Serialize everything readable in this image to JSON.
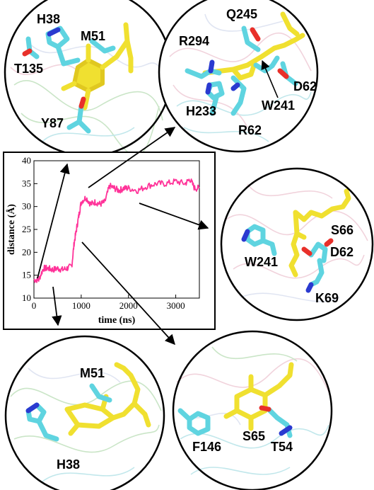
{
  "chart_data": {
    "type": "line",
    "title": "",
    "xlabel": "time (ns)",
    "ylabel": "distance (Å)",
    "xlim": [
      0,
      3500
    ],
    "ylim": [
      10,
      40
    ],
    "xticks": [
      0,
      1000,
      2000,
      3000
    ],
    "yticks": [
      10,
      15,
      20,
      25,
      30,
      35,
      40
    ],
    "grid": false,
    "legend": "none",
    "series": [
      {
        "color": "#ff3399",
        "x": [
          0,
          100,
          200,
          300,
          400,
          500,
          600,
          700,
          800,
          850,
          900,
          950,
          1000,
          1100,
          1200,
          1300,
          1400,
          1500,
          1600,
          1700,
          1800,
          1900,
          2000,
          2200,
          2400,
          2600,
          2800,
          3000,
          3200,
          3300,
          3400,
          3500
        ],
        "y": [
          14,
          14,
          16.5,
          16.5,
          16.2,
          16.5,
          16.2,
          16.5,
          17,
          22,
          25,
          28,
          31,
          32,
          30.5,
          31,
          30.5,
          31,
          34.5,
          34,
          33.5,
          34,
          34,
          33.5,
          34.5,
          35,
          35,
          35.5,
          35,
          36,
          34,
          34
        ]
      }
    ]
  },
  "panels": {
    "top_left": {
      "labels": [
        "H38",
        "M51",
        "T135",
        "Y87"
      ]
    },
    "top_right": {
      "labels": [
        "Q245",
        "R294",
        "D62",
        "W241",
        "H233",
        "R62"
      ]
    },
    "middle_right": {
      "labels": [
        "S66",
        "W241",
        "D62",
        "K69"
      ]
    },
    "bottom_left": {
      "labels": [
        "M51",
        "H38"
      ]
    },
    "bottom_right": {
      "labels": [
        "S65",
        "F146",
        "T54"
      ]
    }
  },
  "colors": {
    "ligand": "#f0e030",
    "residue": "#5fd4e0",
    "oxygen": "#e8302a",
    "nitrogen": "#2a3ad0",
    "series": "#ff3399"
  }
}
